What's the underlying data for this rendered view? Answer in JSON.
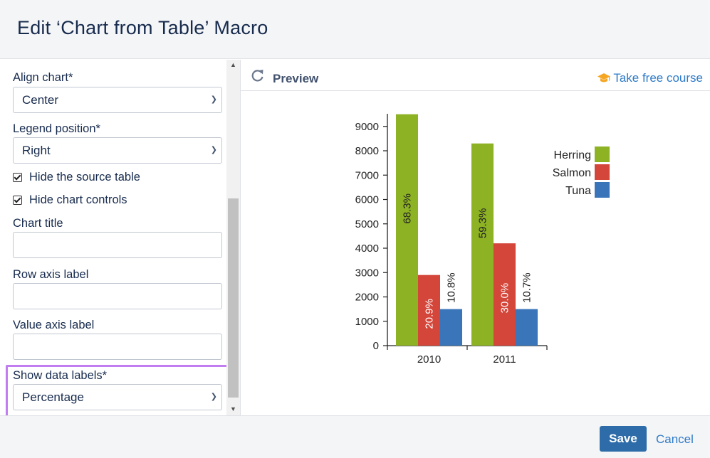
{
  "dialog": {
    "title": "Edit ‘Chart from Table’ Macro"
  },
  "form": {
    "align_chart": {
      "label": "Align chart*",
      "value": "Center"
    },
    "legend_position": {
      "label": "Legend position*",
      "value": "Right"
    },
    "hide_source_table": {
      "label": "Hide the source table",
      "checked": true
    },
    "hide_chart_controls": {
      "label": "Hide chart controls",
      "checked": true
    },
    "chart_title": {
      "label": "Chart title",
      "value": ""
    },
    "row_axis_label": {
      "label": "Row axis label",
      "value": ""
    },
    "value_axis_label": {
      "label": "Value axis label",
      "value": ""
    },
    "show_data_labels": {
      "label": "Show data labels*",
      "value": "Percentage"
    }
  },
  "preview": {
    "title": "Preview",
    "course_link": "Take free course"
  },
  "footer": {
    "save_label": "Save",
    "cancel_label": "Cancel"
  },
  "icons": {
    "refresh": "refresh-icon",
    "graduation_cap": "graduation-cap-icon",
    "chevron": "chevron-down-icon"
  },
  "colors": {
    "herring": "#8db223",
    "salmon": "#d4453a",
    "tuna": "#3975b8",
    "highlight": "#c27ef0",
    "save_button": "#2d6ca8",
    "link": "#2f7bc8"
  },
  "chart_data": {
    "type": "bar",
    "categories": [
      "2010",
      "2011"
    ],
    "series": [
      {
        "name": "Herring",
        "values": [
          9500,
          8300
        ],
        "labels": [
          "68.3%",
          "59.3%"
        ]
      },
      {
        "name": "Salmon",
        "values": [
          2900,
          4200
        ],
        "labels": [
          "20.9%",
          "30.0%"
        ]
      },
      {
        "name": "Tuna",
        "values": [
          1500,
          1500
        ],
        "labels": [
          "10.8%",
          "10.7%"
        ]
      }
    ],
    "yticks": [
      0,
      1000,
      2000,
      3000,
      4000,
      5000,
      6000,
      7000,
      8000,
      9000
    ],
    "ylim": [
      0,
      9500
    ],
    "title": "",
    "xlabel": "",
    "ylabel": "",
    "legend": "top-right",
    "grid": false
  }
}
